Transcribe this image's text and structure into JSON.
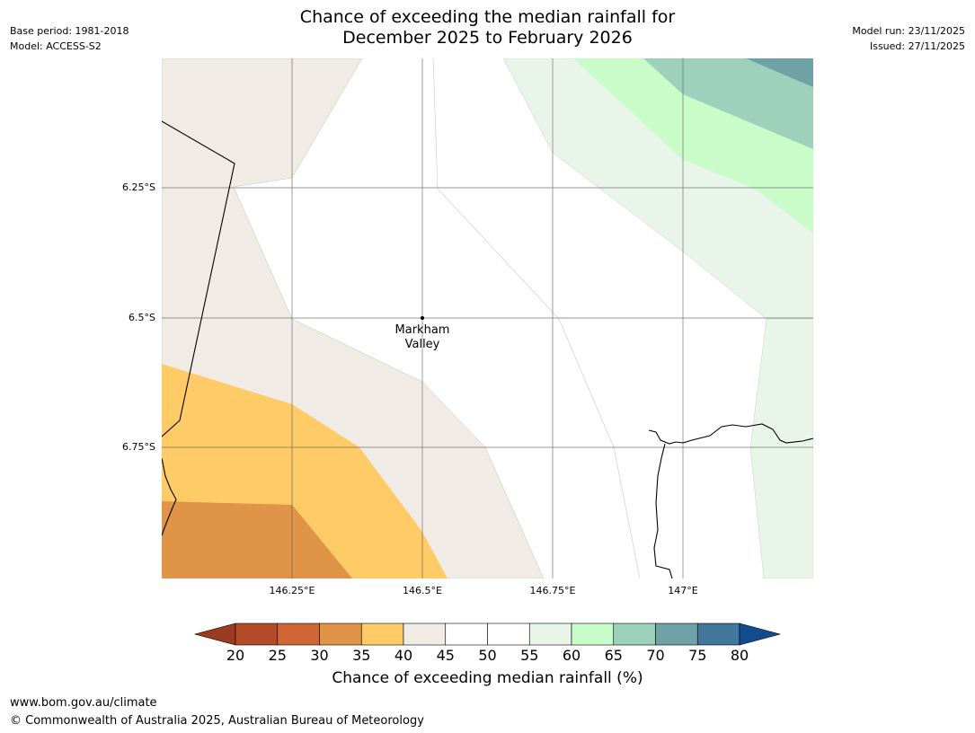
{
  "header": {
    "title_line1": "Chance of exceeding the median rainfall for",
    "title_line2": "December 2025 to February 2026",
    "base_period": "Base period: 1981-2018",
    "model": "Model: ACCESS-S2",
    "model_run": "Model run: 23/11/2025",
    "issued": "Issued: 27/11/2025"
  },
  "map": {
    "lat_labels": [
      "6.25°S",
      "6.5°S",
      "6.75°S"
    ],
    "lon_labels": [
      "146.25°E",
      "146.5°E",
      "146.75°E",
      "147°E"
    ],
    "place": {
      "line1": "Markham",
      "line2": "Valley"
    }
  },
  "colorbar": {
    "ticks": [
      "20",
      "25",
      "30",
      "35",
      "40",
      "45",
      "50",
      "55",
      "60",
      "65",
      "70",
      "75",
      "80"
    ],
    "colors": [
      "#9a3b22",
      "#b34a28",
      "#cf6633",
      "#e09447",
      "#fecb66",
      "#f0ebe4",
      "#ffffff",
      "#ffffff",
      "#e9f5e9",
      "#c9fcc8",
      "#9dd1bb",
      "#6ea2a6",
      "#40779a",
      "#134c8e"
    ],
    "title": "Chance of exceeding median rainfall (%)"
  },
  "footer": {
    "url": "www.bom.gov.au/climate",
    "copyright": "© Commonwealth of Australia 2025, Australian Bureau of Meteorology"
  }
}
